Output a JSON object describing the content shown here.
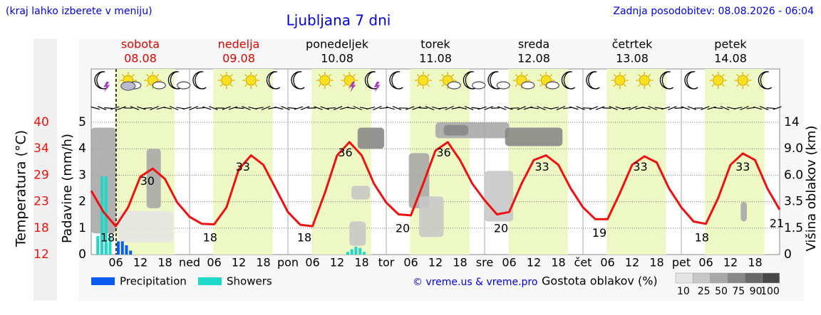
{
  "chart_data": {
    "type": "meteogram",
    "note_left": "(kraj lahko izberete v meniju)",
    "title": "Ljubljana 7 dni",
    "updated": "Zadnja posodobitev: 08.08.2026 - 06:04",
    "days": [
      {
        "name": "sobota",
        "date": "08.08",
        "color": "#e00000"
      },
      {
        "name": "nedelja",
        "date": "09.08",
        "color": "#e00000"
      },
      {
        "name": "ponedeljek",
        "date": "10.08",
        "color": "#000000"
      },
      {
        "name": "torek",
        "date": "11.08",
        "color": "#000000"
      },
      {
        "name": "sreda",
        "date": "12.08",
        "color": "#000000"
      },
      {
        "name": "četrtek",
        "date": "13.08",
        "color": "#000000"
      },
      {
        "name": "petek",
        "date": "14.08",
        "color": "#000000"
      }
    ],
    "xlim": [
      0,
      168
    ],
    "xticks": [
      {
        "value": 6,
        "label": "06"
      },
      {
        "value": 12,
        "label": "12"
      },
      {
        "value": 18,
        "label": "18"
      },
      {
        "value": 24,
        "label": "ned"
      },
      {
        "value": 30,
        "label": "06"
      },
      {
        "value": 36,
        "label": "12"
      },
      {
        "value": 42,
        "label": "18"
      },
      {
        "value": 48,
        "label": "pon"
      },
      {
        "value": 54,
        "label": "06"
      },
      {
        "value": 60,
        "label": "12"
      },
      {
        "value": 66,
        "label": "18"
      },
      {
        "value": 72,
        "label": "tor"
      },
      {
        "value": 78,
        "label": "06"
      },
      {
        "value": 84,
        "label": "12"
      },
      {
        "value": 90,
        "label": "18"
      },
      {
        "value": 96,
        "label": "sre"
      },
      {
        "value": 102,
        "label": "06"
      },
      {
        "value": 108,
        "label": "12"
      },
      {
        "value": 114,
        "label": "18"
      },
      {
        "value": 120,
        "label": "čet"
      },
      {
        "value": 126,
        "label": "06"
      },
      {
        "value": 132,
        "label": "12"
      },
      {
        "value": 138,
        "label": "18"
      },
      {
        "value": 144,
        "label": "pet"
      },
      {
        "value": 150,
        "label": "06"
      },
      {
        "value": 156,
        "label": "12"
      },
      {
        "value": 162,
        "label": "18"
      }
    ],
    "now": 6.07,
    "daylight": [
      5.8,
      20.3
    ],
    "ylabel": "Padavine (mm/h)",
    "ylim": [
      0,
      5
    ],
    "yticks": [
      0,
      1,
      2,
      3,
      4,
      5
    ],
    "temp_label": "Temperatura (°C)",
    "temp_color": "#ee1111",
    "temp_lim": [
      12,
      40
    ],
    "temp_ticks": [
      12,
      {
        "value": 17.6,
        "label": "18"
      },
      {
        "value": 23.2,
        "label": "23"
      },
      {
        "value": 28.8,
        "label": "29"
      },
      {
        "value": 34.4,
        "label": "34"
      },
      40
    ],
    "y2label": "Višina oblakov (km)",
    "y2ticks": [
      0,
      1.5,
      3.5,
      {
        "value": 6,
        "label": "6.0"
      },
      {
        "value": 9,
        "label": "9.0"
      },
      14
    ],
    "temperature": {
      "x": [
        0,
        3,
        6,
        9,
        12,
        15,
        18,
        21,
        24,
        27,
        30,
        33,
        36,
        39,
        42,
        45,
        48,
        51,
        54,
        57,
        60,
        63,
        66,
        69,
        72,
        75,
        78,
        81,
        84,
        87,
        90,
        93,
        96,
        99,
        102,
        105,
        108,
        111,
        114,
        117,
        120,
        123,
        126,
        129,
        132,
        135,
        138,
        141,
        144,
        147,
        150,
        153,
        156,
        159,
        162,
        165,
        168
      ],
      "values": [
        25.5,
        21,
        18,
        22,
        28.5,
        30.2,
        28,
        23,
        20,
        18.5,
        18.4,
        22,
        30,
        33,
        31,
        26,
        21,
        18.3,
        18,
        25,
        33,
        35.8,
        33,
        27,
        23,
        20.5,
        20.3,
        27,
        34,
        35.8,
        32,
        27,
        23.5,
        20.5,
        21,
        27,
        32,
        33,
        31,
        26,
        22,
        19.5,
        19.5,
        25,
        31,
        32.8,
        31.5,
        26,
        22,
        19,
        18.5,
        24,
        31,
        33.4,
        32,
        26,
        21.5
      ]
    },
    "temp_annotations": [
      {
        "x": 4,
        "value": 18
      },
      {
        "x": 13.7,
        "value": 30
      },
      {
        "x": 29,
        "value": 18
      },
      {
        "x": 37,
        "value": 33
      },
      {
        "x": 52,
        "value": 18
      },
      {
        "x": 62,
        "value": 36
      },
      {
        "x": 76,
        "value": 20
      },
      {
        "x": 86,
        "value": 36
      },
      {
        "x": 100,
        "value": 20
      },
      {
        "x": 110,
        "value": 33
      },
      {
        "x": 124,
        "value": 19
      },
      {
        "x": 134,
        "value": 33
      },
      {
        "x": 149,
        "value": 18
      },
      {
        "x": 159,
        "value": 33
      },
      {
        "x": 167.3,
        "value": 21
      }
    ],
    "series": [
      {
        "name": "Precipitation",
        "color": "#0a5cf0",
        "x": [
          2.6,
          3.6,
          6.6,
          7.6,
          8.6,
          9.6
        ],
        "values": [
          0.3,
          0.4,
          0.5,
          0.5,
          0.35,
          0.15
        ]
      },
      {
        "name": "Showers",
        "color": "#1ed8c8",
        "x": [
          1.6,
          2.6,
          3.6,
          4.6,
          62.6,
          63.6,
          64.6,
          65.6,
          66.6
        ],
        "values": [
          0.7,
          2.95,
          2.95,
          0.7,
          0.1,
          0.2,
          0.3,
          0.25,
          0.1
        ]
      }
    ],
    "credit": "© vreme.us & vreme.pro",
    "cloud_label": "Gostota oblakov (%)",
    "cloud_scale": [
      10,
      25,
      50,
      75,
      90,
      100
    ],
    "cloud_colors": [
      "#e4e4e4",
      "#c8c8c8",
      "#a8a8a8",
      "#888888",
      "#686868",
      "#484848"
    ],
    "clouds": [
      {
        "x": [
          0,
          6
        ],
        "height": [
          1.2,
          13
        ],
        "density": 50
      },
      {
        "x": [
          6.5,
          20
        ],
        "height": [
          0.7,
          2.8
        ],
        "density": 10
      },
      {
        "x": [
          13.5,
          17
        ],
        "height": [
          3,
          9
        ],
        "density": 50
      },
      {
        "x": [
          63,
          67
        ],
        "height": [
          0.5,
          2
        ],
        "density": 25
      },
      {
        "x": [
          63.5,
          68
        ],
        "height": [
          3.7,
          5
        ],
        "density": 25
      },
      {
        "x": [
          65,
          71.5
        ],
        "height": [
          9,
          13
        ],
        "density": 75
      },
      {
        "x": [
          77.5,
          82.5
        ],
        "height": [
          3,
          8.5
        ],
        "density": 50
      },
      {
        "x": [
          80,
          86
        ],
        "height": [
          1,
          4
        ],
        "density": 25
      },
      {
        "x": [
          84,
          102
        ],
        "height": [
          11,
          14
        ],
        "density": 50
      },
      {
        "x": [
          86,
          92
        ],
        "height": [
          11.5,
          13.5
        ],
        "density": 75
      },
      {
        "x": [
          96,
          103
        ],
        "height": [
          2,
          6.5
        ],
        "density": 25
      },
      {
        "x": [
          101,
          115
        ],
        "height": [
          9.5,
          13
        ],
        "density": 75
      },
      {
        "x": [
          158.5,
          160
        ],
        "height": [
          2,
          3.5
        ],
        "density": 50
      }
    ],
    "icons": [
      {
        "x": 3,
        "kind": "moon-storm"
      },
      {
        "x": 9,
        "kind": "sun-rain"
      },
      {
        "x": 15,
        "kind": "sun-cloud"
      },
      {
        "x": 21,
        "kind": "moon-cloud"
      },
      {
        "x": 27,
        "kind": "moon"
      },
      {
        "x": 33,
        "kind": "sun"
      },
      {
        "x": 39,
        "kind": "sun"
      },
      {
        "x": 45,
        "kind": "moon"
      },
      {
        "x": 51,
        "kind": "moon"
      },
      {
        "x": 57,
        "kind": "sun"
      },
      {
        "x": 63,
        "kind": "sun-storm"
      },
      {
        "x": 69,
        "kind": "moon-storm"
      },
      {
        "x": 75,
        "kind": "moon"
      },
      {
        "x": 81,
        "kind": "sun"
      },
      {
        "x": 87,
        "kind": "sun-cloud"
      },
      {
        "x": 93,
        "kind": "moon-cloud"
      },
      {
        "x": 99,
        "kind": "moon-cloud"
      },
      {
        "x": 105,
        "kind": "sun-cloud"
      },
      {
        "x": 111,
        "kind": "sun-cloud"
      },
      {
        "x": 117,
        "kind": "moon"
      },
      {
        "x": 123,
        "kind": "moon"
      },
      {
        "x": 129,
        "kind": "sun"
      },
      {
        "x": 135,
        "kind": "sun"
      },
      {
        "x": 141,
        "kind": "moon"
      },
      {
        "x": 147,
        "kind": "moon"
      },
      {
        "x": 153,
        "kind": "sun"
      },
      {
        "x": 159,
        "kind": "sun"
      },
      {
        "x": 165,
        "kind": "moon"
      }
    ]
  }
}
